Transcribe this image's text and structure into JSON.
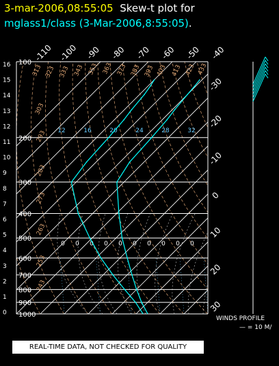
{
  "title": {
    "line1_time": "3-mar-2006,08:55:05",
    "line1_text": "Skew-t plot for",
    "line2_station": "mglass1/class (3-Mar-2006,8:55:05)",
    "line2_period": "."
  },
  "colors": {
    "title_time": "#ffff00",
    "title_text": "#ffffff",
    "station": "#00ffff",
    "isobar": "#ffffff",
    "isotherm": "#ffffff",
    "dry_adiabat_label": "#d8a070",
    "moist_adiabat": "#c8c8c8",
    "mixing_ratio_label": "#66ccff",
    "temperature": "#00ffff",
    "wind": "#00ffff"
  },
  "chart_data": {
    "type": "line",
    "title": "",
    "xlabel": "",
    "ylabel": "",
    "y_scale": "log",
    "pressure_range_hpa": [
      1000,
      100
    ],
    "temperature_range_c": [
      -40,
      40
    ],
    "pressure_ticks": [
      100,
      200,
      300,
      400,
      500,
      600,
      700,
      800,
      900,
      1000
    ],
    "top_temperature_ticks": [
      "-110",
      "-100",
      "-90",
      "-80",
      "-70",
      "-60",
      "-50",
      "-40"
    ],
    "right_temperature_ticks": [
      "-30",
      "-20",
      "-10",
      "0",
      "10",
      "20",
      "30"
    ],
    "height_ticks_km": [
      "16",
      "15",
      "14",
      "13",
      "12",
      "11",
      "10",
      "9",
      "8",
      "7",
      "6",
      "5",
      "4",
      "3",
      "2",
      "1",
      "0"
    ],
    "dry_adiabat_labels": [
      "313",
      "323",
      "333",
      "343",
      "353",
      "363",
      "373",
      "383",
      "393",
      "403",
      "413",
      "423",
      "433",
      "303",
      "293",
      "283",
      "273",
      "263",
      "253",
      "243"
    ],
    "mixing_ratio_labels": [
      "12",
      "16",
      "20",
      "24",
      "28",
      "32"
    ],
    "moist_adiabat_marks": [
      "0",
      "0",
      "0",
      "0",
      "0",
      "0",
      "0",
      "0",
      "0",
      "0"
    ],
    "series": [
      {
        "values": [
          {
            "p": 995,
            "t": 14.5
          },
          {
            "p": 900,
            "t": 7.5
          },
          {
            "p": 800,
            "t": 0
          },
          {
            "p": 700,
            "t": -8
          },
          {
            "p": 600,
            "t": -17
          },
          {
            "p": 500,
            "t": -27.5
          },
          {
            "p": 400,
            "t": -39
          },
          {
            "p": 300,
            "t": -53
          },
          {
            "p": 250,
            "t": -56
          },
          {
            "p": 200,
            "t": -57
          },
          {
            "p": 170,
            "t": -58
          },
          {
            "p": 155,
            "t": -59
          },
          {
            "p": 135,
            "t": -60
          },
          {
            "p": 125,
            "t": -60.5
          },
          {
            "p": 118,
            "t": -61
          }
        ]
      },
      {
        "values": [
          {
            "p": 995,
            "t": 12.5
          },
          {
            "p": 900,
            "t": 5
          },
          {
            "p": 800,
            "t": -5
          },
          {
            "p": 700,
            "t": -16
          },
          {
            "p": 600,
            "t": -28
          },
          {
            "p": 500,
            "t": -41
          },
          {
            "p": 400,
            "t": -56
          },
          {
            "p": 300,
            "t": -72
          },
          {
            "p": 250,
            "t": -74
          },
          {
            "p": 200,
            "t": -75
          },
          {
            "p": 170,
            "t": -76
          },
          {
            "p": 155,
            "t": -77
          },
          {
            "p": 135,
            "t": -78
          },
          {
            "p": 125,
            "t": -79
          },
          {
            "p": 118,
            "t": -80
          }
        ]
      }
    ],
    "wind_barbs_count": 6
  },
  "footer": {
    "qc_banner": "REAL-TIME DATA, NOT CHECKED FOR QUALITY",
    "winds_label": "WINDS PROFILE",
    "winds_scale": "— = 10 M/"
  }
}
